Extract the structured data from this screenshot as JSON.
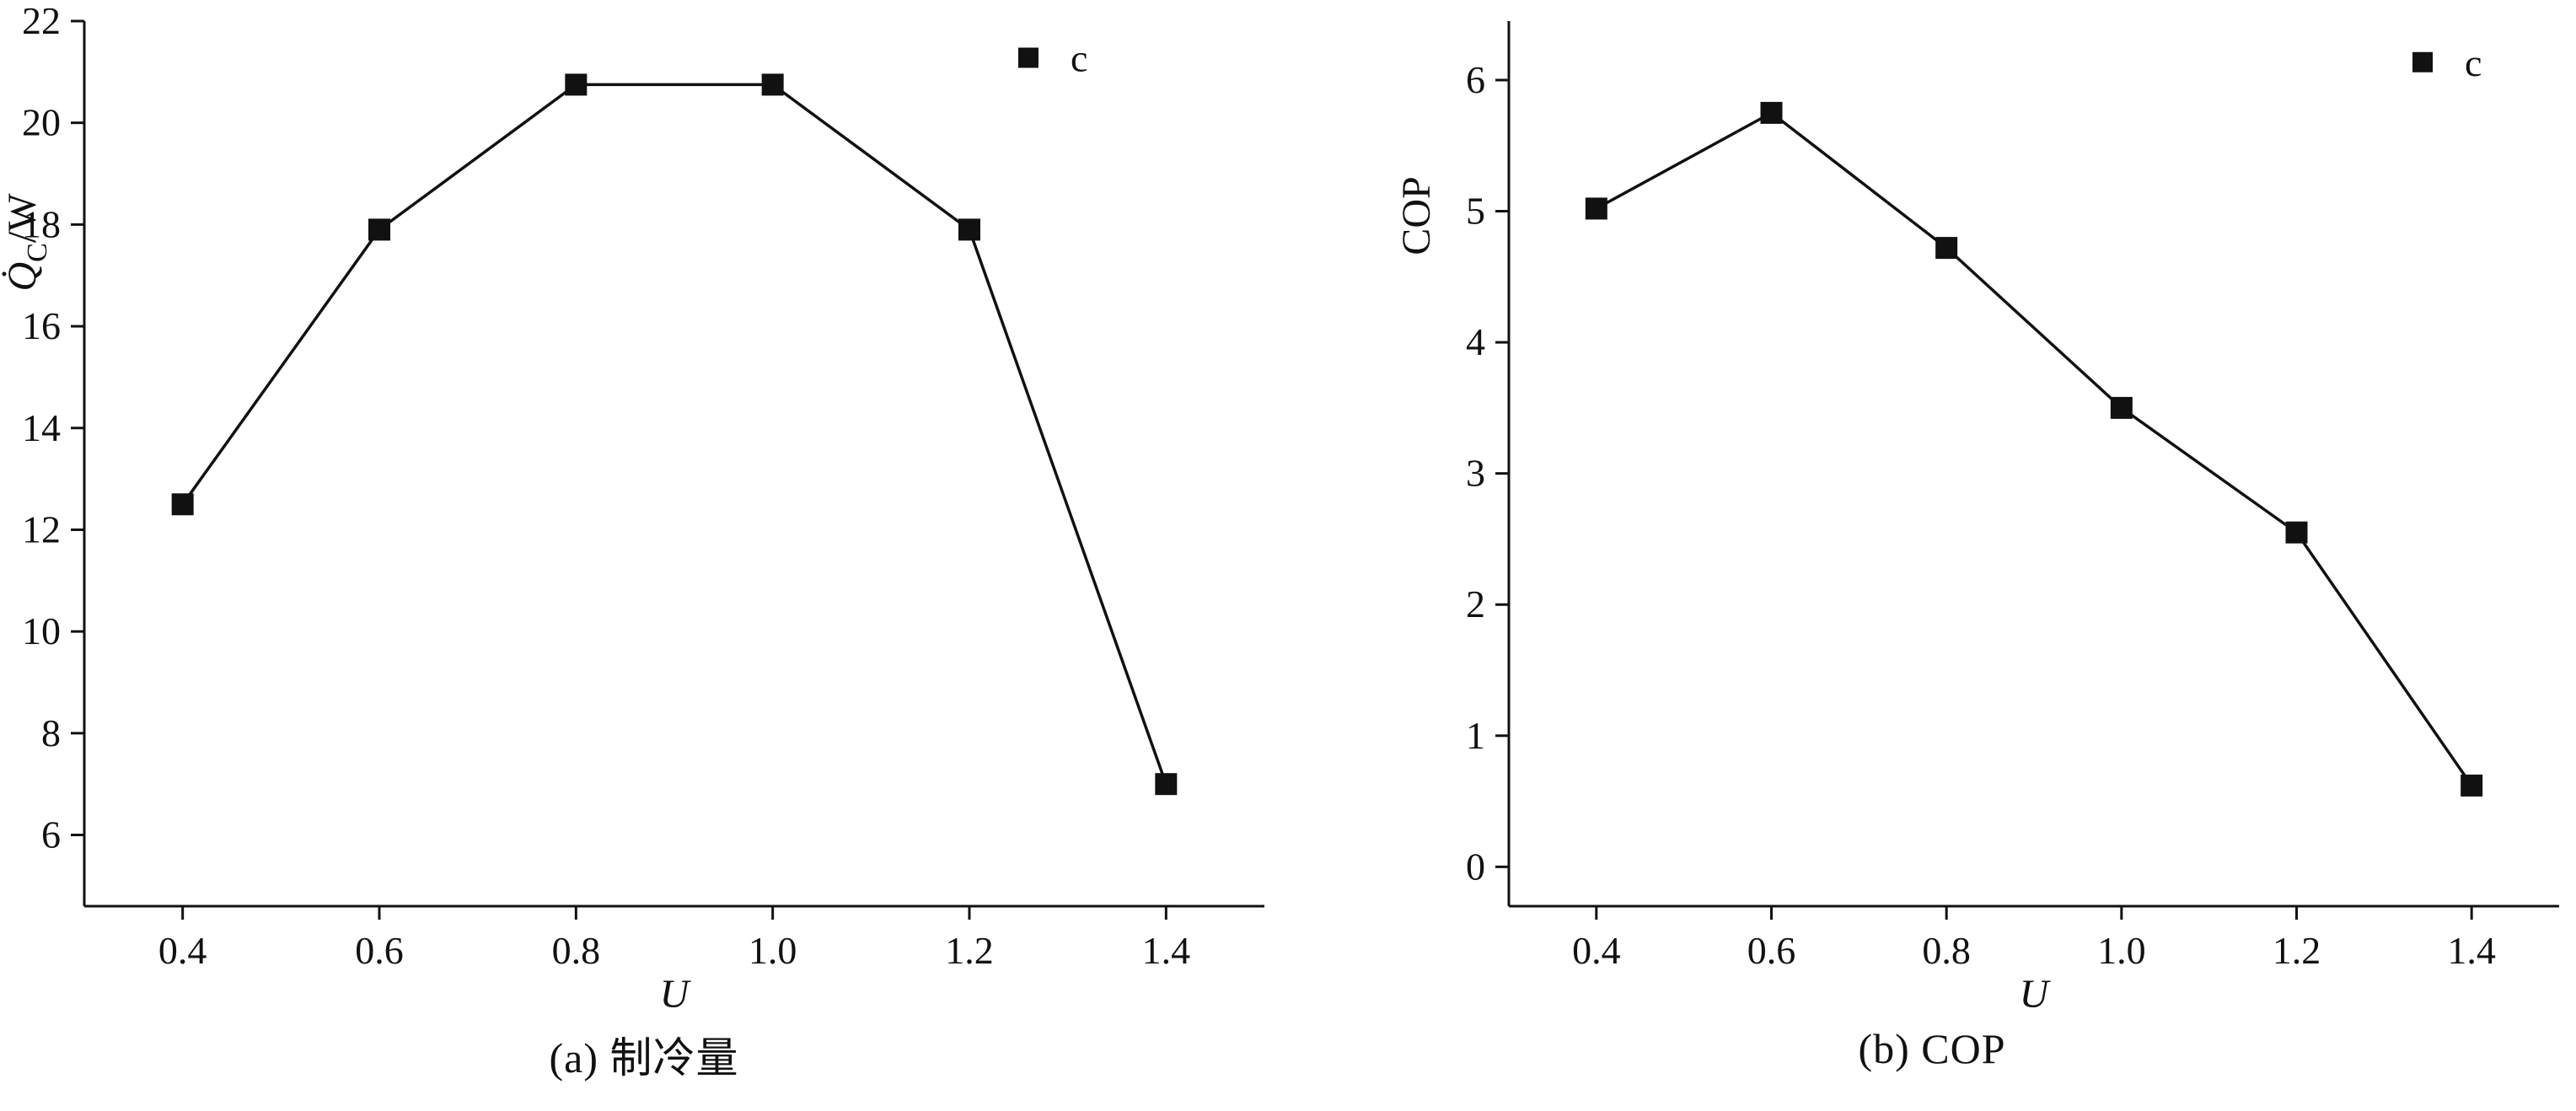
{
  "figure": {
    "background": "#ffffff",
    "text_color": "#111111",
    "line_color": "#111111"
  },
  "chart_data": [
    {
      "type": "line",
      "caption": "(a) 制冷量",
      "xlabel": "U",
      "ylabel": "Q̇C/W",
      "ylabel_rich": [
        {
          "text": "Q̇",
          "style": "italic"
        },
        {
          "text": "C",
          "style": "sub"
        },
        {
          "text": "/W",
          "style": "normal"
        }
      ],
      "x": [
        0.4,
        0.6,
        0.8,
        1.0,
        1.2,
        1.4
      ],
      "series": [
        {
          "name": "c",
          "marker": "square",
          "color": "#111111",
          "values": [
            12.5,
            17.9,
            20.75,
            20.75,
            17.9,
            7.0
          ]
        }
      ],
      "xticks": {
        "values": [
          0.4,
          0.6,
          0.8,
          1.0,
          1.2,
          1.4
        ],
        "labels": [
          "0.4",
          "0.6",
          "0.8",
          "1.0",
          "1.2",
          "1.4"
        ]
      },
      "yticks": {
        "values": [
          6,
          8,
          10,
          12,
          14,
          16,
          18,
          20,
          22
        ],
        "labels": [
          "6",
          "8",
          "10",
          "12",
          "14",
          "16",
          "18",
          "20",
          "22"
        ]
      },
      "xlim": [
        0.3,
        1.5
      ],
      "ylim": [
        4.6,
        22
      ],
      "grid": false,
      "legend": {
        "entries": [
          "c"
        ],
        "position": "inside-top-right",
        "frame": false
      }
    },
    {
      "type": "line",
      "caption": "(b) COP",
      "xlabel": "U",
      "ylabel": "COP",
      "ylabel_rich": [
        {
          "text": "COP",
          "style": "normal"
        }
      ],
      "x": [
        0.4,
        0.6,
        0.8,
        1.0,
        1.2,
        1.4
      ],
      "series": [
        {
          "name": "c",
          "marker": "square",
          "color": "#111111",
          "values": [
            5.02,
            5.75,
            4.72,
            3.5,
            2.55,
            0.62
          ]
        }
      ],
      "xticks": {
        "values": [
          0.4,
          0.6,
          0.8,
          1.0,
          1.2,
          1.4
        ],
        "labels": [
          "0.4",
          "0.6",
          "0.8",
          "1.0",
          "1.2",
          "1.4"
        ]
      },
      "yticks": {
        "values": [
          0,
          1,
          2,
          3,
          4,
          5,
          6
        ],
        "labels": [
          "0",
          "1",
          "2",
          "3",
          "4",
          "5",
          "6"
        ]
      },
      "xlim": [
        0.3,
        1.5
      ],
      "ylim": [
        -0.3,
        6.45
      ],
      "grid": false,
      "legend": {
        "entries": [
          "c"
        ],
        "position": "inside-top-right",
        "frame": false
      }
    }
  ]
}
